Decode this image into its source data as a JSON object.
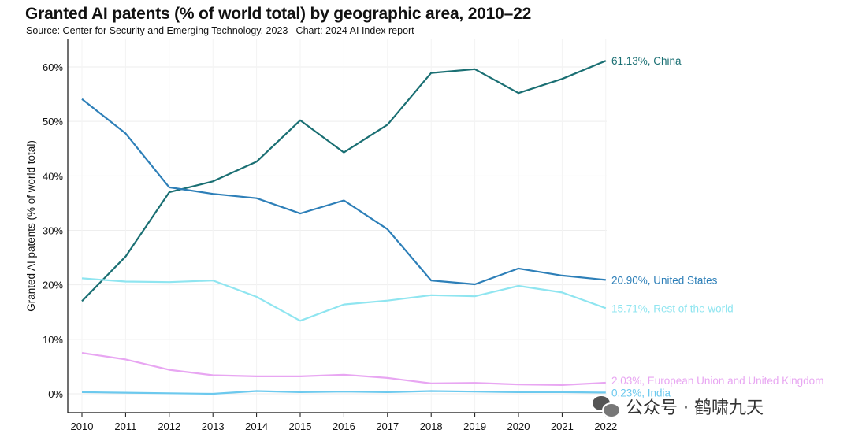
{
  "header": {
    "title": "Granted AI patents (% of world total) by geographic area, 2010–22",
    "subtitle": "Source: Center for Security and Emerging Technology, 2023 | Chart: 2024 AI Index report"
  },
  "watermark": {
    "text": "公众号 · 鹤啸九天",
    "icon": "wechat-icon"
  },
  "chart_data": {
    "type": "line",
    "ylabel": "Granted AI patents (% of world total)",
    "xlabel": "",
    "x": [
      2010,
      2011,
      2012,
      2013,
      2014,
      2015,
      2016,
      2017,
      2018,
      2019,
      2020,
      2021,
      2022
    ],
    "x_tick_labels": [
      "2010",
      "2011",
      "2012",
      "2013",
      "2014",
      "2015",
      "2016",
      "2017",
      "2018",
      "2019",
      "2020",
      "2021",
      "2022"
    ],
    "ylim": [
      0,
      65
    ],
    "y_ticks": [
      0,
      10,
      20,
      30,
      40,
      50,
      60
    ],
    "y_tick_labels": [
      "0%",
      "10%",
      "20%",
      "30%",
      "40%",
      "50%",
      "60%"
    ],
    "grid": true,
    "series": [
      {
        "name": "China",
        "color": "#1a6f73",
        "end_label": "61.13%, China",
        "values": [
          17.0,
          25.2,
          37.0,
          39.0,
          42.6,
          50.2,
          44.3,
          49.4,
          58.9,
          59.6,
          55.2,
          57.8,
          61.13
        ]
      },
      {
        "name": "United States",
        "color": "#2d7fb8",
        "end_label": "20.90%, United States",
        "values": [
          54.1,
          47.8,
          37.9,
          36.7,
          35.9,
          33.1,
          35.5,
          30.2,
          20.8,
          20.1,
          23.0,
          21.7,
          20.9
        ]
      },
      {
        "name": "Rest of the world",
        "color": "#8fe5f0",
        "end_label": "15.71%, Rest of the world",
        "values": [
          21.2,
          20.6,
          20.5,
          20.8,
          17.8,
          13.4,
          16.4,
          17.1,
          18.1,
          17.9,
          19.8,
          18.6,
          15.71
        ]
      },
      {
        "name": "European Union and United Kingdom",
        "color": "#e8a6f2",
        "end_label": "2.03%, European Union and United Kingdom",
        "values": [
          7.5,
          6.3,
          4.4,
          3.4,
          3.2,
          3.2,
          3.5,
          2.9,
          1.9,
          2.0,
          1.7,
          1.6,
          2.03
        ]
      },
      {
        "name": "India",
        "color": "#6cc9ee",
        "end_label": "0.23%, India",
        "values": [
          0.3,
          0.2,
          0.1,
          0.0,
          0.5,
          0.3,
          0.4,
          0.3,
          0.5,
          0.4,
          0.3,
          0.3,
          0.23
        ]
      }
    ]
  }
}
